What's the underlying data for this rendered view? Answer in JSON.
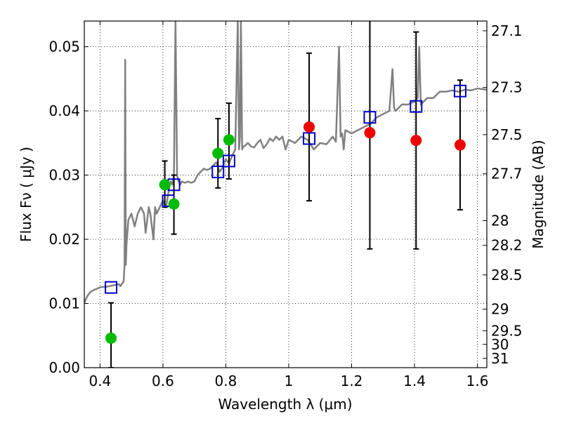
{
  "chart_data": {
    "type": "scatter",
    "xlabel": "Wavelength  λ (μm)",
    "ylabel": "Flux  Fν ( μJy )",
    "ylabel_right": "Magnitude (AB)",
    "xlim": [
      0.35,
      1.63
    ],
    "ylim": [
      0.0,
      0.054
    ],
    "grid": true,
    "x_ticks": [
      "0.4",
      "0.6",
      "0.8",
      "1",
      "1.2",
      "1.4",
      "1.6"
    ],
    "x_tick_values": [
      0.4,
      0.6,
      0.8,
      1.0,
      1.2,
      1.4,
      1.6
    ],
    "y_ticks": [
      "0.00",
      "0.01",
      "0.02",
      "0.03",
      "0.04",
      "0.05"
    ],
    "y_tick_values": [
      0.0,
      0.01,
      0.02,
      0.03,
      0.04,
      0.05
    ],
    "right_ticks": [
      {
        "label": "27.1",
        "mag": 27.1
      },
      {
        "label": "27.3",
        "mag": 27.3
      },
      {
        "label": "27.5",
        "mag": 27.5
      },
      {
        "label": "27.7",
        "mag": 27.7
      },
      {
        "label": "28",
        "mag": 28.0
      },
      {
        "label": "28.2",
        "mag": 28.2
      },
      {
        "label": "28.5",
        "mag": 28.5
      },
      {
        "label": "29",
        "mag": 29.0
      },
      {
        "label": "29.5",
        "mag": 29.5
      },
      {
        "label": "30",
        "mag": 30.0
      },
      {
        "label": "31",
        "mag": 31.0
      }
    ],
    "series": [
      {
        "kind": "model_spectrum",
        "color": "#808080",
        "x": [
          0.35,
          0.36,
          0.37,
          0.38,
          0.39,
          0.4,
          0.41,
          0.42,
          0.43,
          0.44,
          0.45,
          0.46,
          0.465,
          0.47,
          0.475,
          0.478,
          0.48,
          0.482,
          0.484,
          0.487,
          0.49,
          0.5,
          0.51,
          0.52,
          0.53,
          0.54,
          0.545,
          0.55,
          0.555,
          0.56,
          0.57,
          0.575,
          0.58,
          0.59,
          0.6,
          0.61,
          0.62,
          0.625,
          0.63,
          0.635,
          0.64,
          0.645,
          0.65,
          0.655,
          0.66,
          0.67,
          0.68,
          0.69,
          0.7,
          0.71,
          0.72,
          0.73,
          0.74,
          0.75,
          0.76,
          0.77,
          0.78,
          0.79,
          0.8,
          0.81,
          0.82,
          0.83,
          0.838,
          0.842,
          0.845,
          0.848,
          0.852,
          0.856,
          0.86,
          0.87,
          0.88,
          0.89,
          0.9,
          0.91,
          0.92,
          0.93,
          0.94,
          0.95,
          0.96,
          0.97,
          0.98,
          0.99,
          1.0,
          1.02,
          1.04,
          1.06,
          1.08,
          1.1,
          1.12,
          1.14,
          1.15,
          1.16,
          1.165,
          1.17,
          1.175,
          1.18,
          1.2,
          1.22,
          1.24,
          1.26,
          1.28,
          1.3,
          1.32,
          1.33,
          1.335,
          1.34,
          1.36,
          1.38,
          1.4,
          1.41,
          1.415,
          1.42,
          1.44,
          1.46,
          1.48,
          1.5,
          1.52,
          1.54,
          1.56,
          1.58,
          1.6,
          1.63
        ],
        "values": [
          0.0101,
          0.0112,
          0.0118,
          0.0121,
          0.0123,
          0.0125,
          0.0126,
          0.0126,
          0.0127,
          0.0128,
          0.0129,
          0.013,
          0.0127,
          0.0131,
          0.0134,
          0.016,
          0.048,
          0.016,
          0.019,
          0.021,
          0.023,
          0.024,
          0.022,
          0.024,
          0.025,
          0.024,
          0.021,
          0.023,
          0.025,
          0.024,
          0.02,
          0.025,
          0.024,
          0.025,
          0.026,
          0.025,
          0.028,
          0.029,
          0.0285,
          0.03,
          0.054,
          0.03,
          0.029,
          0.0285,
          0.029,
          0.0288,
          0.029,
          0.0288,
          0.029,
          0.03,
          0.0305,
          0.031,
          0.0308,
          0.031,
          0.0315,
          0.032,
          0.0305,
          0.0312,
          0.0325,
          0.0318,
          0.033,
          0.034,
          0.054,
          0.034,
          0.036,
          0.054,
          0.034,
          0.0345,
          0.0345,
          0.035,
          0.0345,
          0.0343,
          0.035,
          0.0355,
          0.0342,
          0.0348,
          0.0357,
          0.0353,
          0.036,
          0.0355,
          0.036,
          0.034,
          0.0355,
          0.035,
          0.036,
          0.0355,
          0.034,
          0.035,
          0.0348,
          0.036,
          0.0352,
          0.05,
          0.036,
          0.0365,
          0.034,
          0.037,
          0.0365,
          0.037,
          0.0375,
          0.038,
          0.039,
          0.0395,
          0.04,
          0.0465,
          0.0405,
          0.04,
          0.041,
          0.041,
          0.0415,
          0.042,
          0.05,
          0.041,
          0.042,
          0.042,
          0.043,
          0.043,
          0.0432,
          0.043,
          0.0433,
          0.0432,
          0.0435,
          0.0433
        ]
      },
      {
        "kind": "model_photometry",
        "marker": "square",
        "color": "#0000cc",
        "x": [
          0.435,
          0.617,
          0.635,
          0.775,
          0.81,
          1.065,
          1.258,
          1.405,
          1.545
        ],
        "values": [
          0.0125,
          0.026,
          0.0285,
          0.0305,
          0.0322,
          0.0357,
          0.039,
          0.0407,
          0.0431
        ]
      },
      {
        "kind": "observed_optical",
        "marker": "circle",
        "color": "#00bb00",
        "x": [
          0.435,
          0.606,
          0.635,
          0.775,
          0.81
        ],
        "values": [
          0.0046,
          0.0285,
          0.0255,
          0.0334,
          0.0355
        ],
        "err_low": [
          0.0046,
          null,
          0.0047,
          null,
          0.0061
        ],
        "err_high": [
          0.0055,
          null,
          0.0045,
          null,
          0.0057
        ],
        "err_low_sym": [
          null,
          0.0035,
          null,
          0.0054,
          null
        ],
        "err_high_sym": [
          null,
          0.0037,
          null,
          0.0054,
          null
        ]
      },
      {
        "kind": "observed_nir",
        "marker": "circle",
        "color": "#ee0000",
        "x": [
          1.065,
          1.258,
          1.405,
          1.545
        ],
        "values": [
          0.0375,
          0.0366,
          0.0354,
          0.0347
        ],
        "err_low": [
          0.0115,
          0.0181,
          0.0169,
          0.0101
        ],
        "err_high": [
          0.0115,
          0.0181,
          0.0169,
          0.0101
        ]
      }
    ]
  }
}
